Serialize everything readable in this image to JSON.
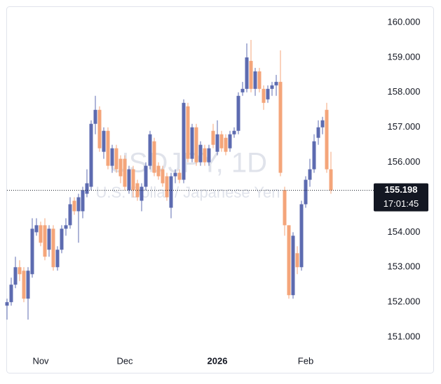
{
  "chart_data": {
    "type": "candlestick",
    "watermark_title": "USDJPY, 1D",
    "watermark_subtitle": "U.S. Dollar / Japanese Yen",
    "up_color": "#5d6bb0",
    "down_color": "#f4a57a",
    "categories": [
      null,
      null,
      null,
      null,
      null,
      null,
      null,
      null,
      "Nov",
      null,
      null,
      null,
      null,
      null,
      null,
      null,
      null,
      null,
      null,
      null,
      null,
      null,
      null,
      null,
      null,
      null,
      null,
      null,
      "Dec",
      null,
      null,
      null,
      null,
      null,
      null,
      null,
      null,
      null,
      null,
      null,
      null,
      null,
      null,
      null,
      null,
      null,
      null,
      null,
      null,
      null,
      "2026",
      null,
      null,
      null,
      null,
      null,
      null,
      null,
      null,
      null,
      null,
      null,
      null,
      null,
      null,
      null,
      null,
      null,
      null,
      null,
      null,
      "Feb",
      null,
      null,
      null,
      null,
      null,
      null
    ],
    "open": [
      151.9,
      152.0,
      152.5,
      153.0,
      152.9,
      152.1,
      152.8,
      154.0,
      154.2,
      154.2,
      153.5,
      154.1,
      153.0,
      153.5,
      154.1,
      154.2,
      154.9,
      154.6,
      154.6,
      155.1,
      155.3,
      157.1,
      157.5,
      156.3,
      156.9,
      155.9,
      156.4,
      156.1,
      156.1,
      155.2,
      155.8,
      155.4,
      154.9,
      155.3,
      155.9,
      156.6,
      155.9,
      155.8,
      155.6,
      154.7,
      155.6,
      155.7,
      155.5,
      157.6,
      156.1,
      157.0,
      156.0,
      156.4,
      156.0,
      156.9,
      156.3,
      156.8,
      156.7,
      156.4,
      156.8,
      156.9,
      158.0,
      158.1,
      158.9,
      158.1,
      158.6,
      158.1,
      157.8,
      158.1,
      158.2,
      158.3,
      155.2,
      154.2,
      152.2,
      153.4,
      153.0,
      154.8,
      155.5,
      155.8,
      156.7,
      157.0,
      157.5,
      155.8
    ],
    "high": [
      152.1,
      152.7,
      153.3,
      153.2,
      153.0,
      153.0,
      154.4,
      154.4,
      154.3,
      154.4,
      154.2,
      154.2,
      153.6,
      154.2,
      154.4,
      155.0,
      155.0,
      155.1,
      155.3,
      155.8,
      157.2,
      157.9,
      157.6,
      157.0,
      157.0,
      156.5,
      156.5,
      156.2,
      156.2,
      155.9,
      155.9,
      155.5,
      155.4,
      156.0,
      156.9,
      156.7,
      156.0,
      155.9,
      155.7,
      155.7,
      155.8,
      155.8,
      157.8,
      157.7,
      157.1,
      157.1,
      156.6,
      156.5,
      156.5,
      157.1,
      157.2,
      156.9,
      156.8,
      156.9,
      157.0,
      158.0,
      158.3,
      159.4,
      159.5,
      158.7,
      158.7,
      158.2,
      158.2,
      158.3,
      158.5,
      159.2,
      155.3,
      154.2,
      154.0,
      153.6,
      154.9,
      155.6,
      156.1,
      156.8,
      157.2,
      157.3,
      157.7,
      156.3
    ],
    "low": [
      151.5,
      151.9,
      152.4,
      152.6,
      152.0,
      151.5,
      152.7,
      153.9,
      153.6,
      153.2,
      153.3,
      152.9,
      152.9,
      153.4,
      153.9,
      154.1,
      154.5,
      153.7,
      154.4,
      155.0,
      155.2,
      156.8,
      156.3,
      156.1,
      155.8,
      155.7,
      155.7,
      155.4,
      155.2,
      155.1,
      155.0,
      154.9,
      154.6,
      155.2,
      155.8,
      155.6,
      155.5,
      155.3,
      154.9,
      154.4,
      155.4,
      155.4,
      155.4,
      156.0,
      156.0,
      155.9,
      155.9,
      155.9,
      155.9,
      156.4,
      156.2,
      156.3,
      156.2,
      156.3,
      156.7,
      156.8,
      157.9,
      158.0,
      158.0,
      157.9,
      158.0,
      157.5,
      157.7,
      157.9,
      157.9,
      155.6,
      153.9,
      152.1,
      152.1,
      152.8,
      152.9,
      154.7,
      155.3,
      155.7,
      156.5,
      156.8,
      155.7,
      155.1
    ],
    "close": [
      152.0,
      152.5,
      153.0,
      152.8,
      152.1,
      152.9,
      154.1,
      154.2,
      153.7,
      153.3,
      154.1,
      153.0,
      153.5,
      154.1,
      154.2,
      154.8,
      154.6,
      155.0,
      155.2,
      155.4,
      157.1,
      157.5,
      156.4,
      156.9,
      155.9,
      156.4,
      155.8,
      155.6,
      155.3,
      155.8,
      155.2,
      155.0,
      155.3,
      155.9,
      156.8,
      155.7,
      155.6,
      155.4,
      155.0,
      155.6,
      155.7,
      155.5,
      157.7,
      156.1,
      157.0,
      156.0,
      156.5,
      156.0,
      156.4,
      156.5,
      156.8,
      156.4,
      156.3,
      156.8,
      156.9,
      157.9,
      158.1,
      159.0,
      158.1,
      158.6,
      158.1,
      157.7,
      158.1,
      158.2,
      158.3,
      155.7,
      154.2,
      152.2,
      153.9,
      153.0,
      154.8,
      155.5,
      155.8,
      156.6,
      157.0,
      157.2,
      155.8,
      155.198
    ],
    "last_price": 155.198,
    "countdown": "17:01:45",
    "ylim": [
      150.5,
      160.4
    ],
    "yticks": [
      {
        "value": 151,
        "label": "151.000"
      },
      {
        "value": 152,
        "label": "152.000"
      },
      {
        "value": 153,
        "label": "153.000"
      },
      {
        "value": 154,
        "label": "154.000"
      },
      {
        "value": 155,
        "label": "155.000"
      },
      {
        "value": 156,
        "label": "156.000"
      },
      {
        "value": 157,
        "label": "157.000"
      },
      {
        "value": 158,
        "label": "158.000"
      },
      {
        "value": 159,
        "label": "159.000"
      },
      {
        "value": 160,
        "label": "160.000"
      }
    ]
  }
}
